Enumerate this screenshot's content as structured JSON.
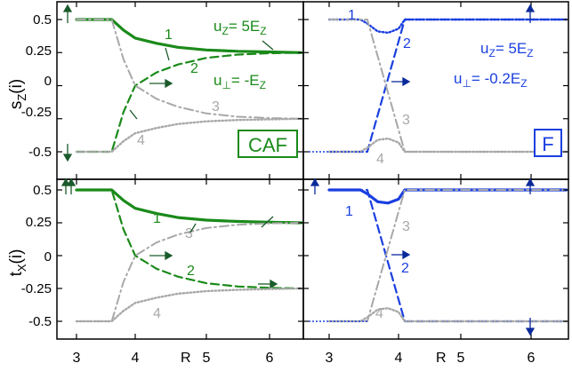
{
  "colors": {
    "caf": "#1a8a1a",
    "f": "#1a3fe0",
    "gray": "#a8a8a8",
    "arrow_caf": "#1a5a2a",
    "arrow_f": "#0a2a9a"
  },
  "axes": {
    "x_label": "R",
    "x_ticks": [
      "3",
      "4",
      "5",
      "6"
    ],
    "y_ticks": [
      "0.5",
      "0.25",
      "0",
      "-0.25",
      "-0.5"
    ],
    "y_label_top": "s",
    "y_label_top_sub": "Z",
    "y_label_top_tail": "(i)",
    "y_label_bottom": "t",
    "y_label_bottom_sub": "X",
    "y_label_bottom_tail": "(i)"
  },
  "panels": {
    "caf_label": "CAF",
    "f_label": "F",
    "caf_uz": "u",
    "caf_uz_sub": "Z",
    "caf_uz_val": "= 5E",
    "caf_uz_val_sub": "Z",
    "caf_up": "u",
    "caf_up_sub": "⊥",
    "caf_up_val": "= -E",
    "caf_up_val_sub": "Z",
    "f_uz": "u",
    "f_uz_sub": "Z",
    "f_uz_val": "= 5E",
    "f_uz_val_sub": "Z",
    "f_up": "u",
    "f_up_sub": "⊥",
    "f_up_val": "= -0.2E",
    "f_up_val_sub": "Z"
  },
  "curve_labels": {
    "tl": [
      "1",
      "2",
      "3",
      "4"
    ],
    "tr": [
      "1",
      "2",
      "3",
      "4"
    ],
    "bl": [
      "1",
      "2",
      "3",
      "4"
    ],
    "br": [
      "1",
      "2",
      "3",
      "4"
    ]
  },
  "chart_data": [
    {
      "panel": "top-left",
      "type": "line",
      "title": "",
      "xlabel": "",
      "ylabel": "s_Z(i)",
      "xlim": [
        2.8,
        6.7
      ],
      "ylim": [
        -0.62,
        0.62
      ],
      "legend": "CAF",
      "series": [
        {
          "name": "1",
          "style": "solid",
          "x": [
            3.0,
            3.55,
            3.6,
            3.8,
            4.0,
            4.3,
            4.6,
            5.0,
            5.5,
            6.0,
            6.5
          ],
          "y": [
            0.5,
            0.5,
            0.5,
            0.42,
            0.36,
            0.32,
            0.29,
            0.27,
            0.26,
            0.255,
            0.25
          ]
        },
        {
          "name": "2",
          "style": "dashed",
          "x": [
            3.0,
            3.55,
            3.6,
            3.8,
            4.0,
            4.3,
            4.6,
            5.0,
            5.5,
            6.0,
            6.5
          ],
          "y": [
            -0.5,
            -0.5,
            -0.5,
            -0.2,
            0.0,
            0.1,
            0.16,
            0.21,
            0.235,
            0.245,
            0.25
          ]
        },
        {
          "name": "3",
          "style": "dash-dot",
          "x": [
            3.0,
            3.55,
            3.6,
            3.8,
            4.0,
            4.3,
            4.6,
            5.0,
            5.5,
            6.0,
            6.5
          ],
          "y": [
            0.5,
            0.5,
            0.5,
            0.2,
            0.0,
            -0.1,
            -0.16,
            -0.21,
            -0.235,
            -0.245,
            -0.25
          ]
        },
        {
          "name": "4",
          "style": "dotted",
          "x": [
            3.0,
            3.55,
            3.6,
            3.8,
            4.0,
            4.3,
            4.6,
            5.0,
            5.5,
            6.0,
            6.5
          ],
          "y": [
            -0.5,
            -0.5,
            -0.5,
            -0.42,
            -0.36,
            -0.32,
            -0.29,
            -0.27,
            -0.26,
            -0.255,
            -0.25
          ]
        }
      ]
    },
    {
      "panel": "top-right",
      "type": "line",
      "title": "",
      "xlabel": "",
      "ylabel": "",
      "xlim": [
        2.8,
        6.7
      ],
      "ylim": [
        -0.62,
        0.62
      ],
      "legend": "F",
      "series": [
        {
          "name": "1",
          "style": "dotted",
          "x": [
            3.0,
            3.45,
            3.55,
            3.7,
            3.85,
            4.0,
            4.1,
            5.0,
            6.0,
            6.5
          ],
          "y": [
            0.5,
            0.5,
            0.47,
            0.41,
            0.4,
            0.43,
            0.5,
            0.5,
            0.5,
            0.5
          ]
        },
        {
          "name": "2",
          "style": "dashed",
          "x": [
            3.0,
            3.55,
            4.1,
            5.0,
            6.0,
            6.5
          ],
          "y": [
            -0.5,
            -0.5,
            0.5,
            0.5,
            0.5,
            0.5
          ]
        },
        {
          "name": "3",
          "style": "dash-dot",
          "x": [
            3.0,
            3.55,
            4.1,
            5.0,
            6.0,
            6.5
          ],
          "y": [
            0.5,
            0.5,
            -0.5,
            -0.5,
            -0.5,
            -0.5
          ]
        },
        {
          "name": "4",
          "style": "dotted",
          "x": [
            3.0,
            3.45,
            3.55,
            3.7,
            3.85,
            4.0,
            4.1,
            5.0,
            6.0,
            6.5
          ],
          "y": [
            -0.5,
            -0.5,
            -0.47,
            -0.41,
            -0.4,
            -0.43,
            -0.5,
            -0.5,
            -0.5,
            -0.5
          ]
        }
      ]
    },
    {
      "panel": "bottom-left",
      "type": "line",
      "title": "",
      "xlabel": "R",
      "ylabel": "t_X(i)",
      "xlim": [
        2.8,
        6.7
      ],
      "ylim": [
        -0.62,
        0.62
      ],
      "series": [
        {
          "name": "1",
          "style": "solid",
          "x": [
            3.0,
            3.55,
            3.6,
            3.8,
            4.0,
            4.3,
            4.6,
            5.0,
            5.5,
            6.0,
            6.5
          ],
          "y": [
            0.5,
            0.5,
            0.5,
            0.42,
            0.36,
            0.32,
            0.29,
            0.27,
            0.26,
            0.255,
            0.25
          ]
        },
        {
          "name": "2",
          "style": "dashed",
          "x": [
            3.0,
            3.55,
            3.6,
            3.8,
            4.0,
            4.3,
            4.6,
            5.0,
            5.5,
            6.0,
            6.5
          ],
          "y": [
            0.5,
            0.5,
            0.5,
            0.2,
            0.0,
            -0.1,
            -0.16,
            -0.21,
            -0.235,
            -0.245,
            -0.25
          ]
        },
        {
          "name": "3",
          "style": "dash-dot",
          "x": [
            3.0,
            3.55,
            3.6,
            3.8,
            4.0,
            4.3,
            4.6,
            5.0,
            5.5,
            6.0,
            6.5
          ],
          "y": [
            -0.5,
            -0.5,
            -0.5,
            -0.2,
            0.0,
            0.1,
            0.16,
            0.21,
            0.235,
            0.245,
            0.25
          ]
        },
        {
          "name": "4",
          "style": "dotted",
          "x": [
            3.0,
            3.55,
            3.6,
            3.8,
            4.0,
            4.3,
            4.6,
            5.0,
            5.5,
            6.0,
            6.5
          ],
          "y": [
            -0.5,
            -0.5,
            -0.5,
            -0.42,
            -0.36,
            -0.32,
            -0.29,
            -0.27,
            -0.26,
            -0.255,
            -0.25
          ]
        }
      ]
    },
    {
      "panel": "bottom-right",
      "type": "line",
      "title": "",
      "xlabel": "R",
      "ylabel": "",
      "xlim": [
        2.8,
        6.7
      ],
      "ylim": [
        -0.62,
        0.62
      ],
      "series": [
        {
          "name": "1",
          "style": "solid",
          "x": [
            3.0,
            3.45,
            3.55,
            3.7,
            3.85,
            4.0,
            4.1,
            5.0,
            6.0,
            6.5
          ],
          "y": [
            0.5,
            0.5,
            0.47,
            0.41,
            0.4,
            0.43,
            0.5,
            0.5,
            0.5,
            0.5
          ]
        },
        {
          "name": "2",
          "style": "dashed",
          "x": [
            3.0,
            3.55,
            4.1,
            5.0,
            6.0,
            6.5
          ],
          "y": [
            0.5,
            0.5,
            -0.5,
            -0.5,
            -0.5,
            -0.5
          ]
        },
        {
          "name": "3",
          "style": "dash-dot",
          "x": [
            3.0,
            3.55,
            4.1,
            5.0,
            6.0,
            6.5
          ],
          "y": [
            -0.5,
            -0.5,
            0.5,
            0.5,
            0.5,
            0.5
          ]
        },
        {
          "name": "4",
          "style": "dotted",
          "x": [
            3.0,
            3.45,
            3.55,
            3.7,
            3.85,
            4.0,
            4.1,
            5.0,
            6.0,
            6.5
          ],
          "y": [
            -0.5,
            -0.5,
            -0.47,
            -0.41,
            -0.4,
            -0.43,
            -0.5,
            -0.5,
            -0.5,
            -0.5
          ]
        }
      ]
    }
  ]
}
